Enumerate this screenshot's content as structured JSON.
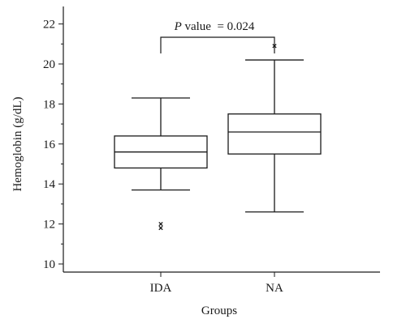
{
  "chart_data": {
    "type": "box",
    "xlabel": "Groups",
    "ylabel": "Hemoglobin (g/dL)",
    "ylim": [
      9.8,
      22.3
    ],
    "yticks": [
      10,
      12,
      14,
      16,
      18,
      20,
      22
    ],
    "categories": [
      "IDA",
      "NA"
    ],
    "boxes": [
      {
        "name": "IDA",
        "min": 13.7,
        "q1": 14.8,
        "median": 15.6,
        "q3": 16.4,
        "max": 18.3,
        "outliers": [
          11.8,
          12.0
        ]
      },
      {
        "name": "NA",
        "min": 12.6,
        "q1": 15.5,
        "median": 16.6,
        "q3": 17.5,
        "max": 20.2,
        "outliers": [
          20.9
        ]
      }
    ],
    "annotation": {
      "p_symbol": "P",
      "rest": " value  = 0.024",
      "between": [
        "IDA",
        "NA"
      ]
    },
    "grid": false,
    "legend": "none"
  }
}
